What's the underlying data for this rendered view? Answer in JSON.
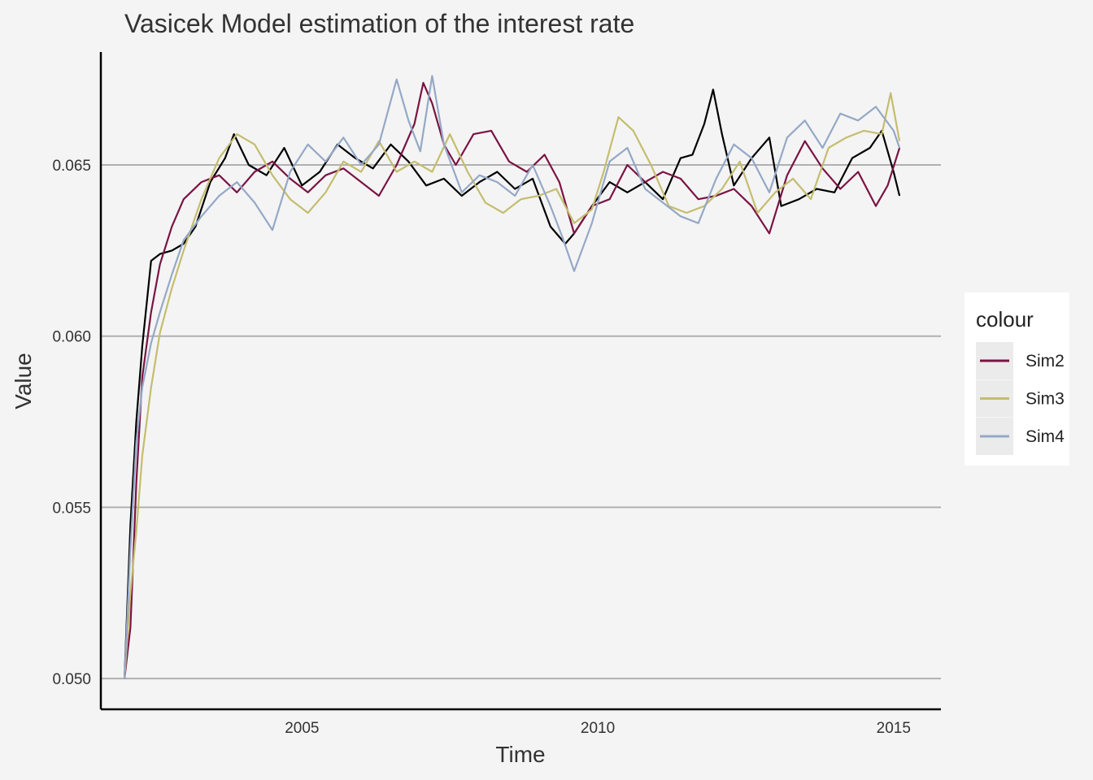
{
  "chart_data": {
    "type": "line",
    "title": "Vasicek Model estimation of the interest rate",
    "xlabel": "Time",
    "ylabel": "Value",
    "xlim": [
      2001.6,
      2015.8
    ],
    "ylim": [
      0.0491,
      0.0683
    ],
    "x_ticks": [
      2005,
      2010,
      2015
    ],
    "x_tick_labels": [
      "2005",
      "2010",
      "2015"
    ],
    "y_ticks": [
      0.05,
      0.055,
      0.06,
      0.065
    ],
    "y_tick_labels": [
      "0.050",
      "0.055",
      "0.060",
      "0.065"
    ],
    "grid": "horizontal major",
    "legend": {
      "title": "colour",
      "position": "right"
    },
    "series": [
      {
        "color": "#000000",
        "x": [
          2002.0,
          2002.1,
          2002.2,
          2002.3,
          2002.45,
          2002.6,
          2002.8,
          2003.0,
          2003.2,
          2003.45,
          2003.7,
          2003.85,
          2004.1,
          2004.4,
          2004.7,
          2005.0,
          2005.3,
          2005.6,
          2005.9,
          2006.2,
          2006.5,
          2006.8,
          2007.1,
          2007.4,
          2007.7,
          2008.0,
          2008.3,
          2008.6,
          2008.9,
          2009.2,
          2009.45,
          2009.6,
          2009.9,
          2010.2,
          2010.5,
          2010.8,
          2011.1,
          2011.4,
          2011.6,
          2011.8,
          2011.95,
          2012.1,
          2012.3,
          2012.6,
          2012.9,
          2013.1,
          2013.4,
          2013.7,
          2014.0,
          2014.3,
          2014.6,
          2014.8,
          2015.0,
          2015.1
        ],
        "y": [
          0.05,
          0.0545,
          0.0575,
          0.0597,
          0.0622,
          0.0624,
          0.0625,
          0.0627,
          0.0632,
          0.0645,
          0.0652,
          0.0659,
          0.065,
          0.0647,
          0.0655,
          0.0644,
          0.0648,
          0.0656,
          0.0652,
          0.0649,
          0.0656,
          0.0651,
          0.0644,
          0.0646,
          0.0641,
          0.0645,
          0.0648,
          0.0643,
          0.0646,
          0.0632,
          0.0627,
          0.063,
          0.0638,
          0.0645,
          0.0642,
          0.0645,
          0.064,
          0.0652,
          0.0653,
          0.0662,
          0.0672,
          0.0659,
          0.0644,
          0.0652,
          0.0658,
          0.0638,
          0.064,
          0.0643,
          0.0642,
          0.0652,
          0.0655,
          0.066,
          0.0648,
          0.0641
        ]
      },
      {
        "name": "Sim2",
        "color": "#7a1443",
        "x": [
          2002.0,
          2002.1,
          2002.2,
          2002.3,
          2002.45,
          2002.6,
          2002.8,
          2003.0,
          2003.3,
          2003.6,
          2003.9,
          2004.2,
          2004.5,
          2004.8,
          2005.1,
          2005.4,
          2005.7,
          2006.0,
          2006.3,
          2006.6,
          2006.9,
          2007.05,
          2007.2,
          2007.4,
          2007.6,
          2007.9,
          2008.2,
          2008.5,
          2008.8,
          2009.1,
          2009.35,
          2009.6,
          2009.9,
          2010.2,
          2010.5,
          2010.8,
          2011.1,
          2011.4,
          2011.7,
          2012.0,
          2012.3,
          2012.6,
          2012.9,
          2013.2,
          2013.5,
          2013.8,
          2014.1,
          2014.4,
          2014.7,
          2014.9,
          2015.1
        ],
        "y": [
          0.05,
          0.0515,
          0.0557,
          0.0588,
          0.0607,
          0.0621,
          0.0632,
          0.064,
          0.0645,
          0.0647,
          0.0642,
          0.0648,
          0.0651,
          0.0646,
          0.0642,
          0.0647,
          0.0649,
          0.0645,
          0.0641,
          0.065,
          0.0662,
          0.0674,
          0.0668,
          0.0656,
          0.065,
          0.0659,
          0.066,
          0.0651,
          0.0648,
          0.0653,
          0.0645,
          0.063,
          0.0638,
          0.064,
          0.065,
          0.0645,
          0.0648,
          0.0646,
          0.064,
          0.0641,
          0.0643,
          0.0638,
          0.063,
          0.0647,
          0.0657,
          0.0649,
          0.0643,
          0.0648,
          0.0638,
          0.0644,
          0.0655
        ]
      },
      {
        "name": "Sim3",
        "color": "#c4bd6f",
        "x": [
          2002.0,
          2002.1,
          2002.2,
          2002.3,
          2002.45,
          2002.6,
          2002.8,
          2003.0,
          2003.3,
          2003.6,
          2003.9,
          2004.2,
          2004.5,
          2004.8,
          2005.1,
          2005.4,
          2005.7,
          2006.0,
          2006.3,
          2006.6,
          2006.9,
          2007.2,
          2007.5,
          2007.8,
          2008.1,
          2008.4,
          2008.7,
          2009.0,
          2009.3,
          2009.6,
          2009.9,
          2010.1,
          2010.35,
          2010.6,
          2010.9,
          2011.2,
          2011.5,
          2011.8,
          2012.1,
          2012.4,
          2012.7,
          2013.0,
          2013.3,
          2013.6,
          2013.9,
          2014.2,
          2014.5,
          2014.8,
          2014.95,
          2015.1
        ],
        "y": [
          0.05,
          0.0525,
          0.0543,
          0.0565,
          0.0585,
          0.0601,
          0.0614,
          0.0625,
          0.064,
          0.0652,
          0.0659,
          0.0656,
          0.0647,
          0.064,
          0.0636,
          0.0642,
          0.0651,
          0.0648,
          0.0657,
          0.0648,
          0.0651,
          0.0648,
          0.0659,
          0.0648,
          0.0639,
          0.0636,
          0.064,
          0.0641,
          0.0643,
          0.0633,
          0.0637,
          0.0648,
          0.0664,
          0.066,
          0.065,
          0.0638,
          0.0636,
          0.0638,
          0.0643,
          0.0651,
          0.0636,
          0.0642,
          0.0646,
          0.064,
          0.0655,
          0.0658,
          0.066,
          0.0659,
          0.0671,
          0.0657
        ]
      },
      {
        "name": "Sim4",
        "color": "#95a8c6",
        "x": [
          2002.0,
          2002.1,
          2002.2,
          2002.3,
          2002.45,
          2002.6,
          2002.8,
          2003.0,
          2003.3,
          2003.6,
          2003.9,
          2004.2,
          2004.5,
          2004.8,
          2005.1,
          2005.4,
          2005.7,
          2006.0,
          2006.3,
          2006.6,
          2006.8,
          2007.0,
          2007.2,
          2007.4,
          2007.7,
          2008.0,
          2008.3,
          2008.6,
          2008.9,
          2009.2,
          2009.4,
          2009.6,
          2009.9,
          2010.2,
          2010.5,
          2010.8,
          2011.1,
          2011.4,
          2011.7,
          2012.0,
          2012.3,
          2012.6,
          2012.9,
          2013.2,
          2013.5,
          2013.8,
          2014.1,
          2014.4,
          2014.7,
          2015.0,
          2015.1
        ],
        "y": [
          0.05,
          0.0538,
          0.0569,
          0.0585,
          0.0598,
          0.0607,
          0.0618,
          0.0628,
          0.0635,
          0.0641,
          0.0645,
          0.0639,
          0.0631,
          0.0648,
          0.0656,
          0.0651,
          0.0658,
          0.065,
          0.0656,
          0.0675,
          0.0663,
          0.0654,
          0.0676,
          0.0656,
          0.0642,
          0.0647,
          0.0645,
          0.0641,
          0.065,
          0.0638,
          0.0629,
          0.0619,
          0.0633,
          0.0651,
          0.0655,
          0.0643,
          0.0639,
          0.0635,
          0.0633,
          0.0646,
          0.0656,
          0.0652,
          0.0642,
          0.0658,
          0.0663,
          0.0655,
          0.0665,
          0.0663,
          0.0667,
          0.066,
          0.0655
        ]
      }
    ]
  }
}
